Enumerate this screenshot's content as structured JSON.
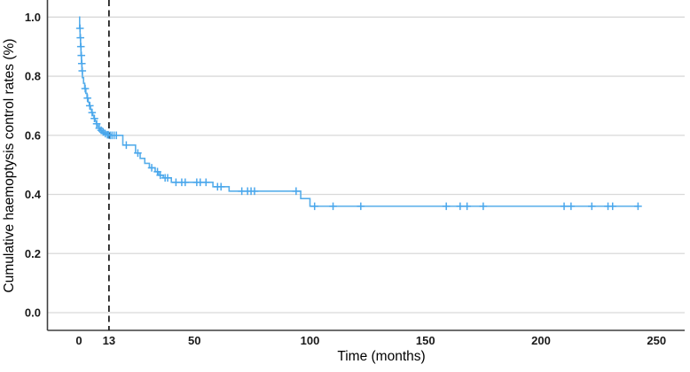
{
  "chart_data": {
    "type": "line",
    "subtype": "kaplan-meier-step-curve",
    "title": "",
    "xlabel": "Time (months)",
    "ylabel": "Cumulative haemoptysis control rates (%)",
    "x_ticks": [
      0,
      13,
      50,
      100,
      150,
      200,
      250
    ],
    "y_ticks": [
      0.0,
      0.2,
      0.4,
      0.6,
      0.8,
      1.0
    ],
    "xlim": [
      -14,
      262
    ],
    "ylim": [
      -0.06,
      1.06
    ],
    "grid": "horizontal-only",
    "legend": "none",
    "reference_line_x": 13,
    "median_control_value_at_reference": 0.6,
    "end_time": 242,
    "colors": {
      "line": "#57aeea",
      "censor": "#4aa7ec",
      "grid": "#d9d9d9",
      "axis": "#3f3f3f",
      "reference_line": "#1f1f1f",
      "tick_text": "#1a1a1a"
    },
    "steps": [
      [
        0,
        1.0
      ],
      [
        0.3,
        0.962
      ],
      [
        0.5,
        0.93
      ],
      [
        0.7,
        0.9
      ],
      [
        0.9,
        0.87
      ],
      [
        1.1,
        0.843
      ],
      [
        1.3,
        0.818
      ],
      [
        1.5,
        0.795
      ],
      [
        2.0,
        0.776
      ],
      [
        2.5,
        0.758
      ],
      [
        3.0,
        0.742
      ],
      [
        3.5,
        0.726
      ],
      [
        4.0,
        0.712
      ],
      [
        4.5,
        0.7
      ],
      [
        5.0,
        0.688
      ],
      [
        5.5,
        0.677
      ],
      [
        6.0,
        0.667
      ],
      [
        6.5,
        0.657
      ],
      [
        7.0,
        0.648
      ],
      [
        7.5,
        0.639
      ],
      [
        8.0,
        0.631
      ],
      [
        8.6,
        0.624
      ],
      [
        9.2,
        0.617
      ],
      [
        10,
        0.611
      ],
      [
        11,
        0.606
      ],
      [
        12,
        0.602
      ],
      [
        13,
        0.6
      ],
      [
        19,
        0.567
      ],
      [
        24.5,
        0.54
      ],
      [
        26.5,
        0.522
      ],
      [
        28.5,
        0.505
      ],
      [
        30.5,
        0.49
      ],
      [
        33,
        0.477
      ],
      [
        34.5,
        0.465
      ],
      [
        36.5,
        0.456
      ],
      [
        40,
        0.441
      ],
      [
        58,
        0.426
      ],
      [
        65,
        0.411
      ],
      [
        96,
        0.386
      ],
      [
        100,
        0.36
      ]
    ],
    "censors": [
      [
        0.45,
        0.962
      ],
      [
        0.65,
        0.93
      ],
      [
        0.85,
        0.9
      ],
      [
        1.05,
        0.87
      ],
      [
        1.25,
        0.843
      ],
      [
        1.45,
        0.818
      ],
      [
        2.7,
        0.758
      ],
      [
        3.7,
        0.726
      ],
      [
        4.7,
        0.7
      ],
      [
        5.7,
        0.677
      ],
      [
        6.7,
        0.657
      ],
      [
        7.7,
        0.639
      ],
      [
        8.8,
        0.624
      ],
      [
        9.6,
        0.617
      ],
      [
        10.5,
        0.611
      ],
      [
        11.4,
        0.606
      ],
      [
        12.3,
        0.602
      ],
      [
        12.7,
        0.602
      ],
      [
        13.5,
        0.6
      ],
      [
        14.3,
        0.6
      ],
      [
        15.2,
        0.6
      ],
      [
        16.2,
        0.6
      ],
      [
        20.5,
        0.567
      ],
      [
        25.5,
        0.54
      ],
      [
        31.5,
        0.49
      ],
      [
        34,
        0.477
      ],
      [
        35.2,
        0.465
      ],
      [
        37.3,
        0.456
      ],
      [
        38.4,
        0.456
      ],
      [
        42,
        0.441
      ],
      [
        44.5,
        0.441
      ],
      [
        46,
        0.441
      ],
      [
        51,
        0.441
      ],
      [
        52.5,
        0.441
      ],
      [
        55,
        0.441
      ],
      [
        60,
        0.426
      ],
      [
        61.5,
        0.426
      ],
      [
        70.5,
        0.411
      ],
      [
        73,
        0.411
      ],
      [
        74.5,
        0.411
      ],
      [
        76,
        0.411
      ],
      [
        94,
        0.411
      ],
      [
        102,
        0.36
      ],
      [
        110,
        0.36
      ],
      [
        122,
        0.36
      ],
      [
        159,
        0.36
      ],
      [
        165,
        0.36
      ],
      [
        168,
        0.36
      ],
      [
        175,
        0.36
      ],
      [
        210,
        0.36
      ],
      [
        213,
        0.36
      ],
      [
        222,
        0.36
      ],
      [
        229,
        0.36
      ],
      [
        231,
        0.36
      ],
      [
        242,
        0.36
      ]
    ]
  }
}
